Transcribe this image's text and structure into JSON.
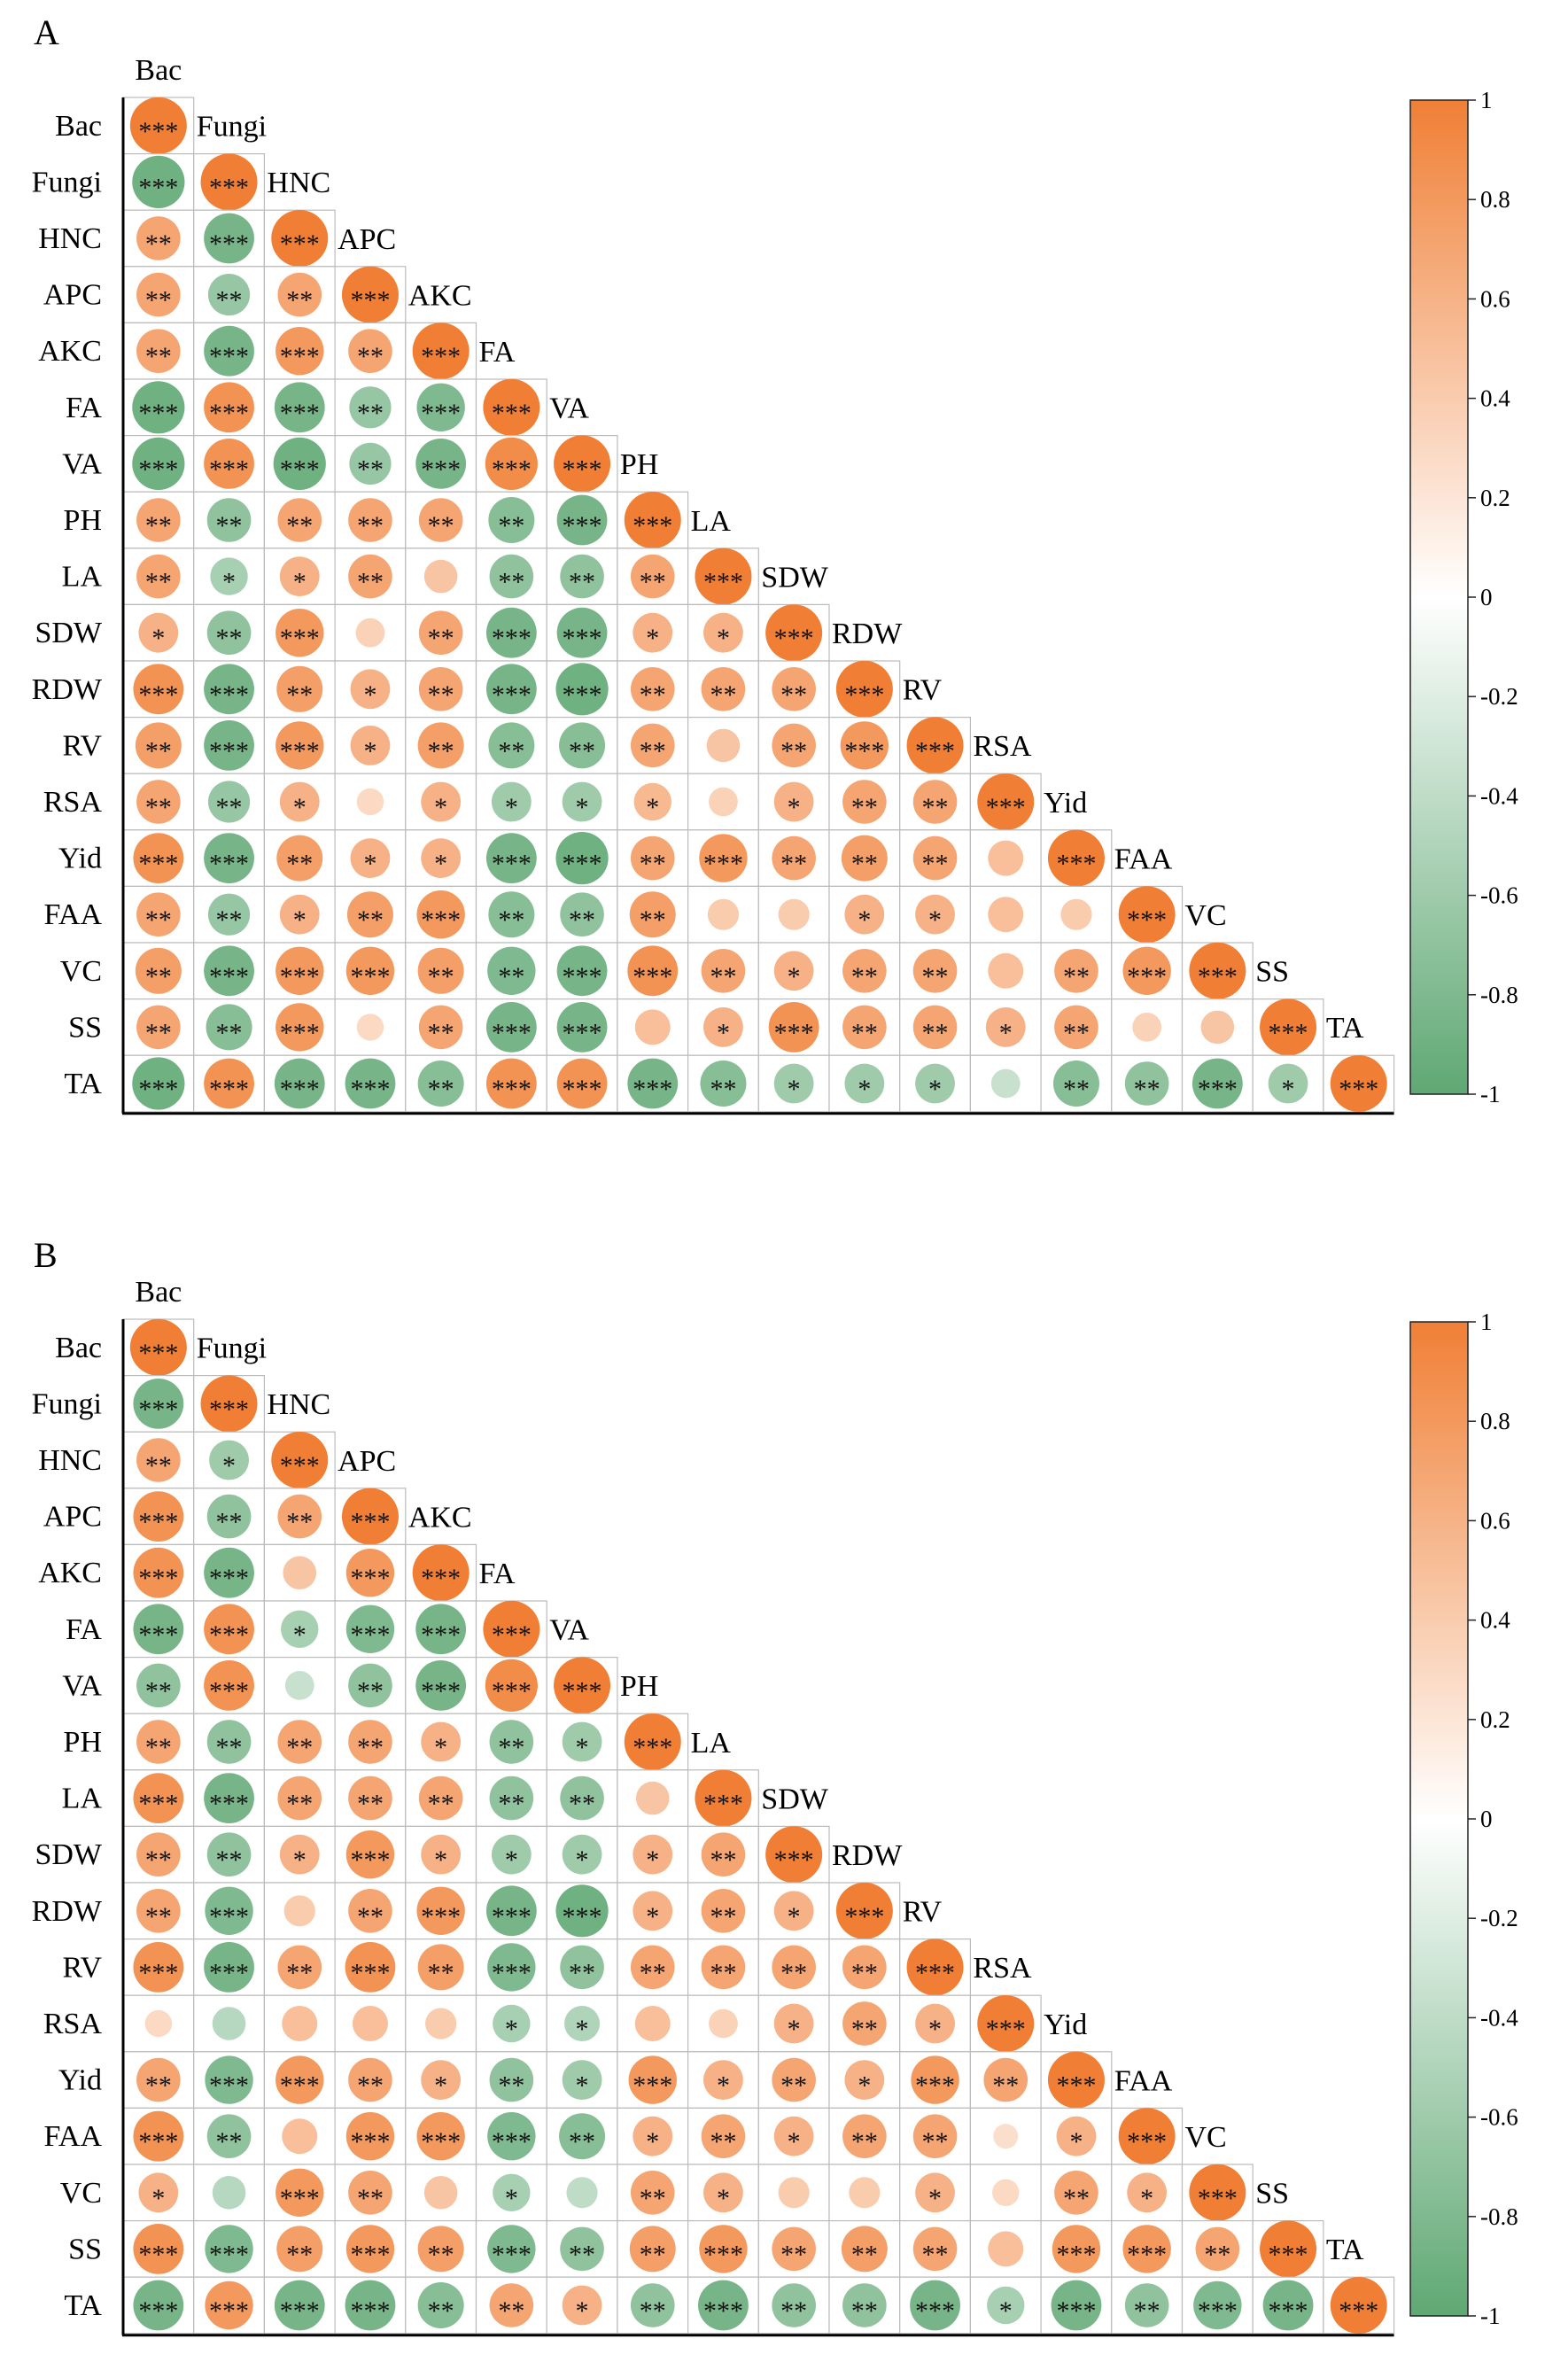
{
  "colors": {
    "positive": "#F07F35",
    "negative": "#5FA873",
    "neutral": "#FFFFFF",
    "grid": "#BBBBBB",
    "axis": "#000000"
  },
  "chart_data": [
    {
      "type": "heatmap",
      "panel_label": "A",
      "variables": [
        "Bac",
        "Fungi",
        "HNC",
        "APC",
        "AKC",
        "FA",
        "VA",
        "PH",
        "LA",
        "SDW",
        "RDW",
        "RV",
        "RSA",
        "Yid",
        "FAA",
        "VC",
        "SS",
        "TA"
      ],
      "legend": {
        "ticks": [
          "1",
          "0.8",
          "0.6",
          "0.4",
          "0.2",
          "0",
          "-0.2",
          "-0.4",
          "-0.6",
          "-0.8",
          "-1"
        ],
        "range": [
          -1,
          1
        ]
      },
      "rows": [
        {
          "label": "Bac",
          "values": [
            1.0
          ],
          "significance": [
            "***"
          ]
        },
        {
          "label": "Fungi",
          "values": [
            -0.9,
            1.0
          ],
          "significance": [
            "***",
            "***"
          ]
        },
        {
          "label": "HNC",
          "values": [
            0.7,
            -0.85,
            1.0
          ],
          "significance": [
            "**",
            "***",
            "***"
          ]
        },
        {
          "label": "APC",
          "values": [
            0.7,
            -0.65,
            0.7,
            1.0
          ],
          "significance": [
            "**",
            "**",
            "**",
            "***"
          ]
        },
        {
          "label": "AKC",
          "values": [
            0.7,
            -0.85,
            0.8,
            0.7,
            1.0
          ],
          "significance": [
            "**",
            "***",
            "***",
            "**",
            "***"
          ]
        },
        {
          "label": "FA",
          "values": [
            -0.9,
            0.85,
            -0.85,
            -0.65,
            -0.8,
            1.0
          ],
          "significance": [
            "***",
            "***",
            "***",
            "**",
            "***",
            "***"
          ]
        },
        {
          "label": "VA",
          "values": [
            -0.9,
            0.85,
            -0.9,
            -0.65,
            -0.85,
            0.9,
            1.0
          ],
          "significance": [
            "***",
            "***",
            "***",
            "**",
            "***",
            "***",
            "***"
          ]
        },
        {
          "label": "PH",
          "values": [
            0.7,
            -0.7,
            0.7,
            0.7,
            0.7,
            -0.75,
            -0.85,
            1.0
          ],
          "significance": [
            "**",
            "**",
            "**",
            "**",
            "**",
            "**",
            "***",
            "***"
          ]
        },
        {
          "label": "LA",
          "values": [
            0.7,
            -0.55,
            0.6,
            0.7,
            0.45,
            -0.7,
            -0.7,
            0.7,
            1.0
          ],
          "significance": [
            "**",
            "*",
            "*",
            "**",
            "",
            "**",
            "**",
            "**",
            "***"
          ]
        },
        {
          "label": "SDW",
          "values": [
            0.6,
            -0.7,
            0.8,
            0.35,
            0.7,
            -0.85,
            -0.85,
            0.6,
            0.6,
            1.0
          ],
          "significance": [
            "*",
            "**",
            "***",
            "",
            "**",
            "***",
            "***",
            "*",
            "*",
            "***"
          ]
        },
        {
          "label": "RDW",
          "values": [
            0.85,
            -0.85,
            0.75,
            0.6,
            0.7,
            -0.85,
            -0.9,
            0.7,
            0.7,
            0.7,
            1.0
          ],
          "significance": [
            "***",
            "***",
            "**",
            "*",
            "**",
            "***",
            "***",
            "**",
            "**",
            "**",
            "***"
          ]
        },
        {
          "label": "RV",
          "values": [
            0.75,
            -0.85,
            0.8,
            0.6,
            0.75,
            -0.75,
            -0.75,
            0.7,
            0.45,
            0.7,
            0.8,
            1.0
          ],
          "significance": [
            "**",
            "***",
            "***",
            "*",
            "**",
            "**",
            "**",
            "**",
            "",
            "**",
            "***",
            "***"
          ]
        },
        {
          "label": "RSA",
          "values": [
            0.7,
            -0.65,
            0.6,
            0.3,
            0.6,
            -0.6,
            -0.6,
            0.55,
            0.35,
            0.6,
            0.7,
            0.7,
            1.0
          ],
          "significance": [
            "**",
            "**",
            "*",
            "",
            "*",
            "*",
            "*",
            "*",
            "",
            "*",
            "**",
            "**",
            "***"
          ]
        },
        {
          "label": "Yid",
          "values": [
            0.85,
            -0.85,
            0.75,
            0.6,
            0.6,
            -0.85,
            -0.9,
            0.7,
            0.8,
            0.7,
            0.75,
            0.7,
            0.5,
            1.0
          ],
          "significance": [
            "***",
            "***",
            "**",
            "*",
            "*",
            "***",
            "***",
            "**",
            "***",
            "**",
            "**",
            "**",
            "",
            "***"
          ]
        },
        {
          "label": "FAA",
          "values": [
            0.7,
            -0.65,
            0.6,
            0.75,
            0.8,
            -0.75,
            -0.7,
            0.75,
            0.4,
            0.4,
            0.6,
            0.6,
            0.5,
            0.4,
            1.0
          ],
          "significance": [
            "**",
            "**",
            "*",
            "**",
            "***",
            "**",
            "**",
            "**",
            "",
            "",
            "*",
            "*",
            "",
            "",
            "***"
          ]
        },
        {
          "label": "VC",
          "values": [
            0.75,
            -0.85,
            0.8,
            0.8,
            0.75,
            -0.8,
            -0.85,
            0.85,
            0.7,
            0.6,
            0.7,
            0.7,
            0.5,
            0.7,
            0.8,
            1.0
          ],
          "significance": [
            "**",
            "***",
            "***",
            "***",
            "**",
            "**",
            "***",
            "***",
            "**",
            "*",
            "**",
            "**",
            "",
            "**",
            "***",
            "***"
          ]
        },
        {
          "label": "SS",
          "values": [
            0.7,
            -0.75,
            0.8,
            0.3,
            0.7,
            -0.85,
            -0.85,
            0.5,
            0.6,
            0.85,
            0.7,
            0.7,
            0.6,
            0.7,
            0.35,
            0.45,
            1.0
          ],
          "significance": [
            "**",
            "**",
            "***",
            "",
            "**",
            "***",
            "***",
            "",
            "*",
            "***",
            "**",
            "**",
            "*",
            "**",
            "",
            "",
            "***"
          ]
        },
        {
          "label": "TA",
          "values": [
            -0.9,
            0.85,
            -0.85,
            -0.85,
            -0.75,
            0.85,
            0.85,
            -0.85,
            -0.75,
            -0.6,
            -0.6,
            -0.6,
            -0.35,
            -0.75,
            -0.7,
            -0.85,
            -0.6,
            1.0
          ],
          "significance": [
            "***",
            "***",
            "***",
            "***",
            "**",
            "***",
            "***",
            "***",
            "**",
            "*",
            "*",
            "*",
            "",
            "**",
            "**",
            "***",
            "*",
            "***"
          ]
        }
      ]
    },
    {
      "type": "heatmap",
      "panel_label": "B",
      "variables": [
        "Bac",
        "Fungi",
        "HNC",
        "APC",
        "AKC",
        "FA",
        "VA",
        "PH",
        "LA",
        "SDW",
        "RDW",
        "RV",
        "RSA",
        "Yid",
        "FAA",
        "VC",
        "SS",
        "TA"
      ],
      "legend": {
        "ticks": [
          "1",
          "0.8",
          "0.6",
          "0.4",
          "0.2",
          "0",
          "-0.2",
          "-0.4",
          "-0.6",
          "-0.8",
          "-1"
        ],
        "range": [
          -1,
          1
        ]
      },
      "rows": [
        {
          "label": "Bac",
          "values": [
            1.0
          ],
          "significance": [
            "***"
          ]
        },
        {
          "label": "Fungi",
          "values": [
            -0.85,
            1.0
          ],
          "significance": [
            "***",
            "***"
          ]
        },
        {
          "label": "HNC",
          "values": [
            0.7,
            -0.6,
            1.0
          ],
          "significance": [
            "**",
            "*",
            "***"
          ]
        },
        {
          "label": "APC",
          "values": [
            0.85,
            -0.7,
            0.7,
            1.0
          ],
          "significance": [
            "***",
            "**",
            "**",
            "***"
          ]
        },
        {
          "label": "AKC",
          "values": [
            0.85,
            -0.85,
            0.45,
            0.8,
            1.0
          ],
          "significance": [
            "***",
            "***",
            "",
            "***",
            "***"
          ]
        },
        {
          "label": "FA",
          "values": [
            -0.85,
            0.85,
            -0.55,
            -0.8,
            -0.85,
            1.0
          ],
          "significance": [
            "***",
            "***",
            "*",
            "***",
            "***",
            "***"
          ]
        },
        {
          "label": "VA",
          "values": [
            -0.7,
            0.85,
            -0.35,
            -0.7,
            -0.85,
            0.9,
            1.0
          ],
          "significance": [
            "**",
            "***",
            "",
            "**",
            "***",
            "***",
            "***"
          ]
        },
        {
          "label": "PH",
          "values": [
            0.7,
            -0.7,
            0.7,
            0.7,
            0.6,
            -0.7,
            -0.6,
            1.0
          ],
          "significance": [
            "**",
            "**",
            "**",
            "**",
            "*",
            "**",
            "*",
            "***"
          ]
        },
        {
          "label": "LA",
          "values": [
            0.85,
            -0.85,
            0.7,
            0.7,
            0.7,
            -0.7,
            -0.7,
            0.45,
            1.0
          ],
          "significance": [
            "***",
            "***",
            "**",
            "**",
            "**",
            "**",
            "**",
            "",
            "***"
          ]
        },
        {
          "label": "SDW",
          "values": [
            0.7,
            -0.7,
            0.6,
            0.8,
            0.6,
            -0.6,
            -0.6,
            0.6,
            0.7,
            1.0
          ],
          "significance": [
            "**",
            "**",
            "*",
            "***",
            "*",
            "*",
            "*",
            "*",
            "**",
            "***"
          ]
        },
        {
          "label": "RDW",
          "values": [
            0.7,
            -0.8,
            0.4,
            0.7,
            0.8,
            -0.85,
            -0.9,
            0.6,
            0.7,
            0.6,
            1.0
          ],
          "significance": [
            "**",
            "***",
            "",
            "**",
            "***",
            "***",
            "***",
            "*",
            "**",
            "*",
            "***"
          ]
        },
        {
          "label": "RV",
          "values": [
            0.85,
            -0.85,
            0.7,
            0.85,
            0.75,
            -0.8,
            -0.7,
            0.7,
            0.7,
            0.7,
            0.7,
            1.0
          ],
          "significance": [
            "***",
            "***",
            "**",
            "***",
            "**",
            "***",
            "**",
            "**",
            "**",
            "**",
            "**",
            "***"
          ]
        },
        {
          "label": "RSA",
          "values": [
            0.3,
            -0.45,
            0.5,
            0.5,
            0.4,
            -0.55,
            -0.5,
            0.5,
            0.35,
            0.6,
            0.7,
            0.6,
            1.0
          ],
          "significance": [
            "",
            "",
            "",
            "",
            "",
            "*",
            "*",
            "",
            "",
            "*",
            "**",
            "*",
            "***"
          ]
        },
        {
          "label": "Yid",
          "values": [
            0.7,
            -0.8,
            0.8,
            0.7,
            0.6,
            -0.7,
            -0.6,
            0.8,
            0.6,
            0.7,
            0.6,
            0.8,
            0.7,
            1.0
          ],
          "significance": [
            "**",
            "***",
            "***",
            "**",
            "*",
            "**",
            "*",
            "***",
            "*",
            "**",
            "*",
            "***",
            "**",
            "***"
          ]
        },
        {
          "label": "FAA",
          "values": [
            0.85,
            -0.7,
            0.5,
            0.8,
            0.8,
            -0.8,
            -0.75,
            0.6,
            0.7,
            0.6,
            0.7,
            0.7,
            0.25,
            0.6,
            1.0
          ],
          "significance": [
            "***",
            "**",
            "",
            "***",
            "***",
            "***",
            "**",
            "*",
            "**",
            "*",
            "**",
            "**",
            "",
            "*",
            "***"
          ]
        },
        {
          "label": "VC",
          "values": [
            0.6,
            -0.45,
            0.8,
            0.7,
            0.45,
            -0.55,
            -0.4,
            0.7,
            0.6,
            0.4,
            0.4,
            0.6,
            0.3,
            0.7,
            0.6,
            1.0
          ],
          "significance": [
            "*",
            "",
            "***",
            "**",
            "",
            "*",
            "",
            "**",
            "*",
            "",
            "",
            "*",
            "",
            "**",
            "*",
            "***"
          ]
        },
        {
          "label": "SS",
          "values": [
            0.85,
            -0.8,
            0.75,
            0.8,
            0.75,
            -0.8,
            -0.7,
            0.75,
            0.8,
            0.7,
            0.75,
            0.7,
            0.5,
            0.8,
            0.8,
            0.7,
            1.0
          ],
          "significance": [
            "***",
            "***",
            "**",
            "***",
            "**",
            "***",
            "**",
            "**",
            "***",
            "**",
            "**",
            "**",
            "",
            "***",
            "***",
            "**",
            "***"
          ]
        },
        {
          "label": "TA",
          "values": [
            -0.85,
            0.8,
            -0.85,
            -0.85,
            -0.75,
            0.7,
            0.6,
            -0.7,
            -0.85,
            -0.7,
            -0.7,
            -0.85,
            -0.55,
            -0.85,
            -0.7,
            -0.8,
            -0.85,
            1.0
          ],
          "significance": [
            "***",
            "***",
            "***",
            "***",
            "**",
            "**",
            "*",
            "**",
            "***",
            "**",
            "**",
            "***",
            "*",
            "***",
            "**",
            "***",
            "***",
            "***"
          ]
        }
      ]
    }
  ]
}
